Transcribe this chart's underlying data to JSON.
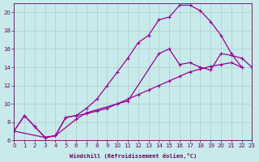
{
  "xlabel": "Windchill (Refroidissement éolien,°C)",
  "bg_color": "#c8eaea",
  "grid_color": "#aacccc",
  "line_color": "#990099",
  "xlim": [
    0,
    23
  ],
  "ylim": [
    6,
    21
  ],
  "xticks": [
    0,
    1,
    2,
    3,
    4,
    5,
    6,
    7,
    8,
    9,
    10,
    11,
    12,
    13,
    14,
    15,
    16,
    17,
    18,
    19,
    20,
    21,
    22,
    23
  ],
  "yticks": [
    6,
    8,
    10,
    12,
    14,
    16,
    18,
    20
  ],
  "font_color": "#660066",
  "lineA_x": [
    0,
    1,
    2,
    3,
    4,
    5,
    6,
    7,
    8,
    9,
    10,
    11,
    12,
    13,
    14,
    15,
    16,
    17,
    18,
    19,
    20,
    21,
    22
  ],
  "lineA_y": [
    7.0,
    8.7,
    7.5,
    6.3,
    6.5,
    8.5,
    8.7,
    8.9,
    9.2,
    9.5,
    10.0,
    10.5,
    11.0,
    11.5,
    12.0,
    12.5,
    13.0,
    13.5,
    13.8,
    14.1,
    14.3,
    14.5,
    14.0
  ],
  "lineB_x": [
    0,
    1,
    2,
    3,
    4,
    5,
    6,
    7,
    8,
    9,
    10,
    11,
    12,
    13,
    14,
    15,
    16,
    17,
    18,
    19,
    20,
    21,
    22
  ],
  "lineB_y": [
    7.0,
    8.7,
    7.5,
    6.3,
    6.5,
    8.5,
    8.7,
    9.5,
    10.5,
    12.0,
    13.5,
    15.0,
    16.7,
    17.5,
    19.2,
    19.5,
    20.8,
    20.8,
    20.2,
    19.0,
    17.5,
    15.5,
    14.0
  ],
  "lineC_x": [
    0,
    3,
    4,
    6,
    7,
    10,
    11,
    14,
    15,
    16,
    17,
    18,
    19,
    20,
    21,
    22,
    23
  ],
  "lineC_y": [
    7.0,
    6.3,
    6.5,
    8.3,
    9.0,
    10.0,
    10.3,
    15.5,
    16.0,
    14.3,
    14.5,
    14.0,
    13.7,
    15.5,
    15.3,
    15.0,
    14.0
  ]
}
